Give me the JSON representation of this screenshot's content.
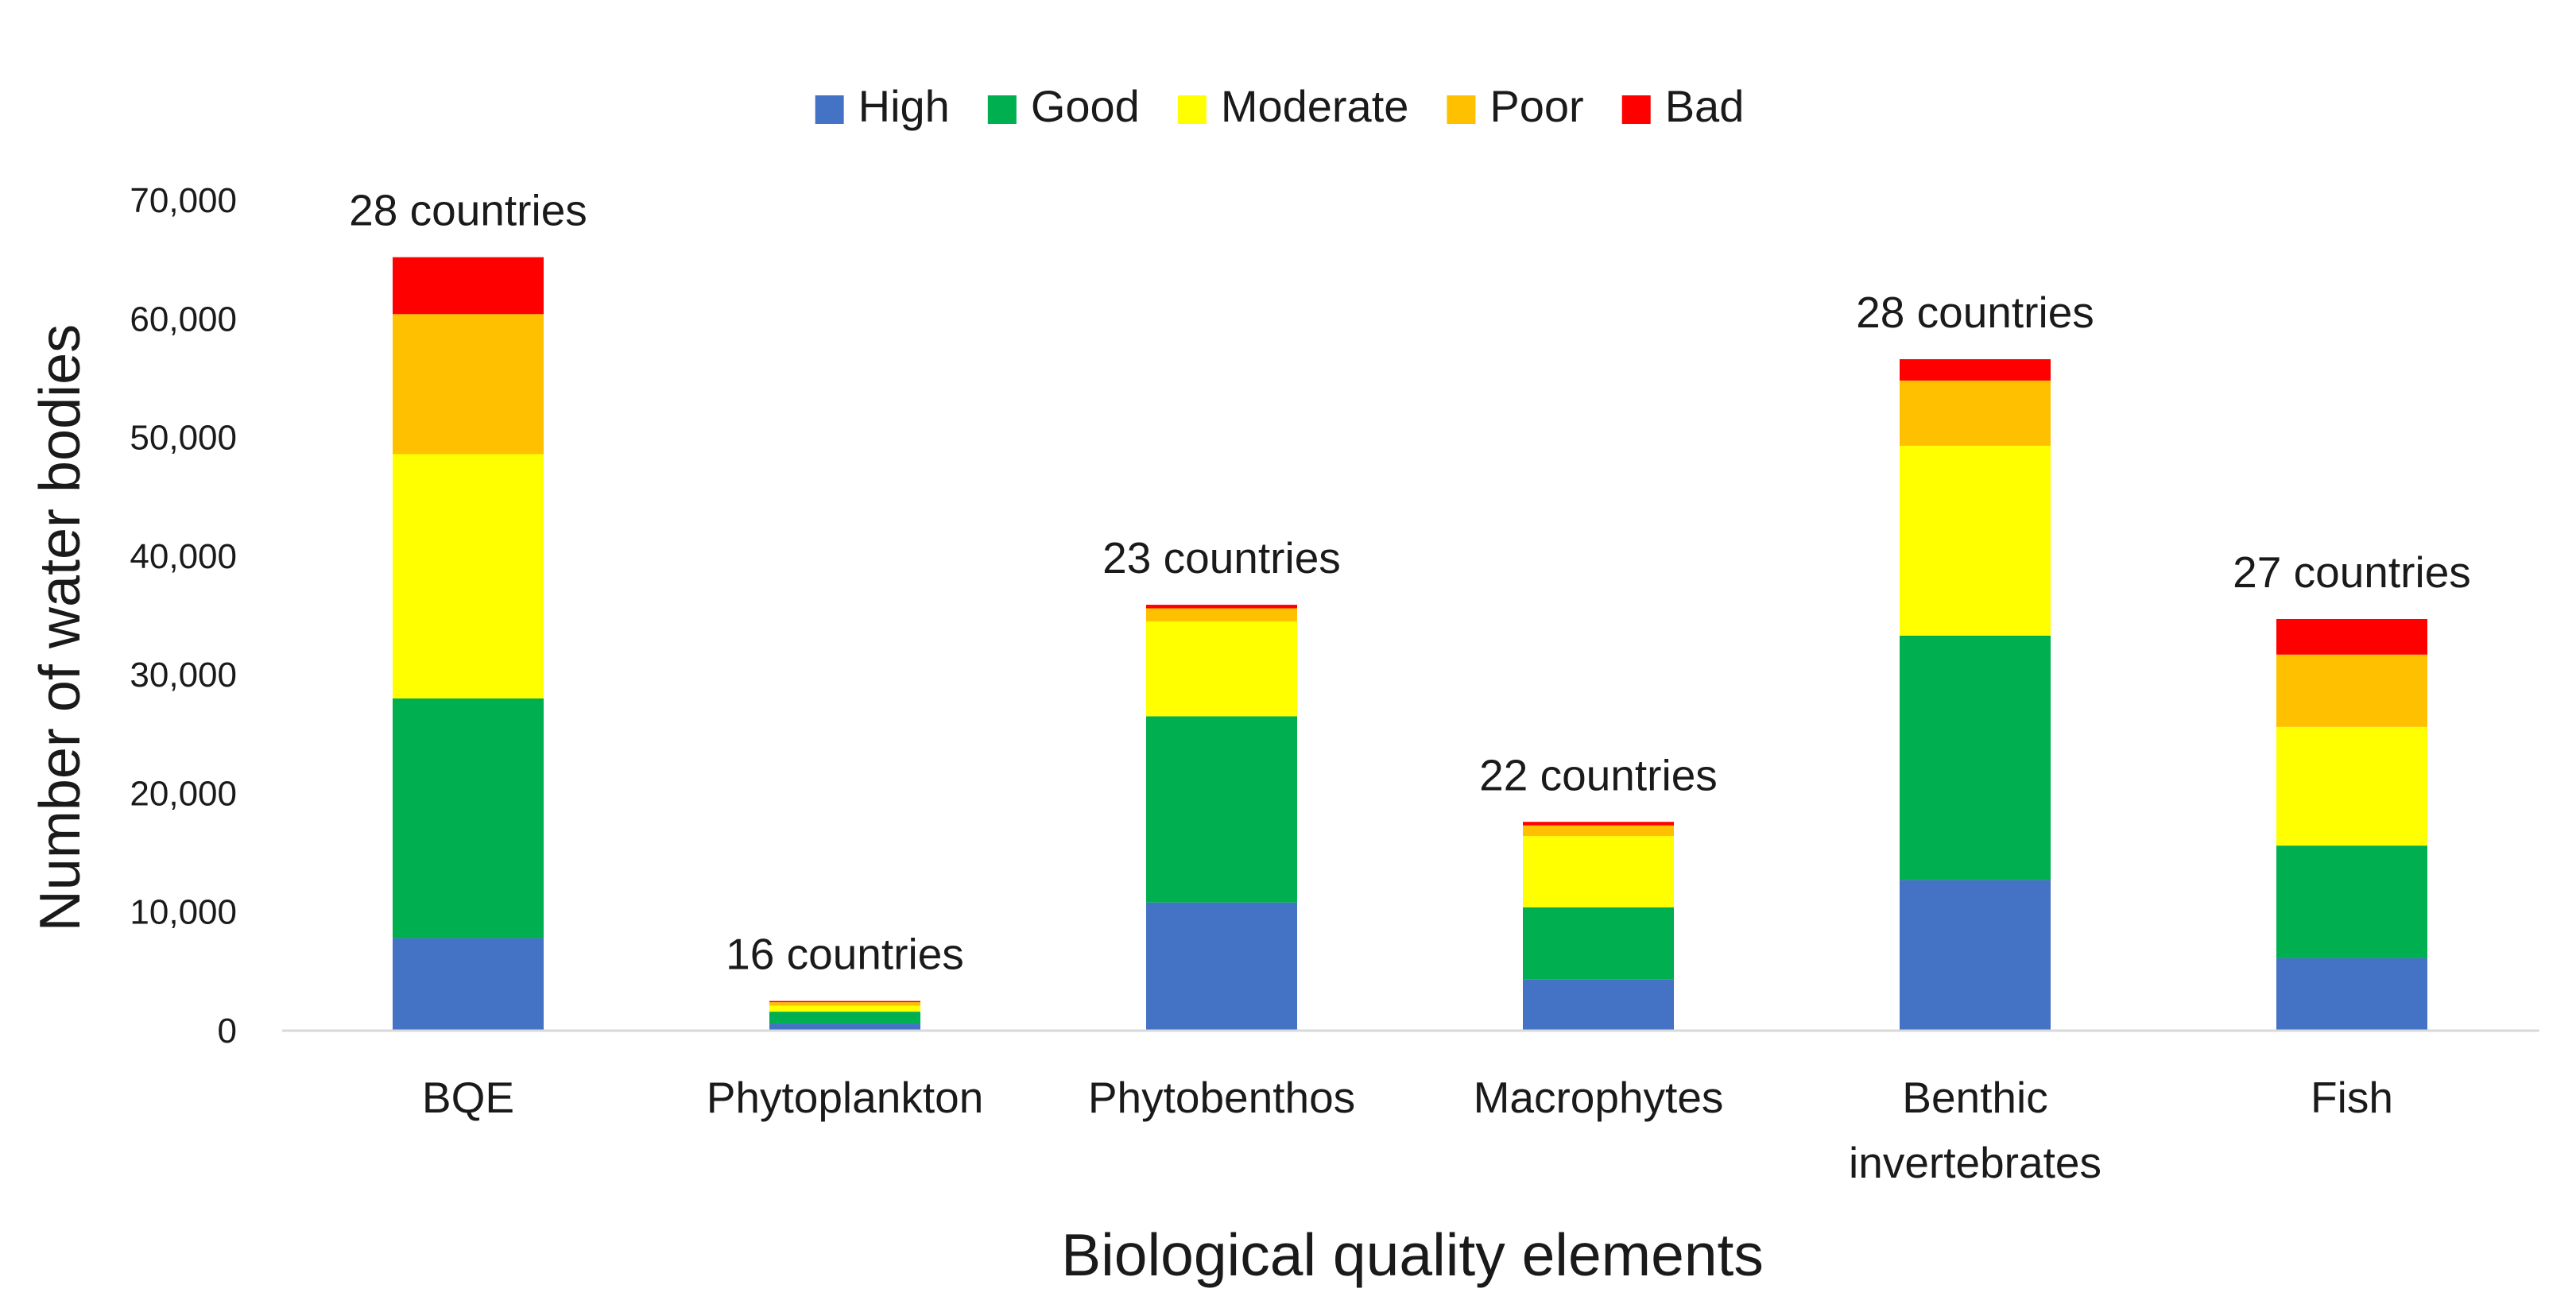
{
  "chart_data": {
    "type": "stacked-bar",
    "title": "",
    "xlabel": "Biological quality elements",
    "ylabel": "Number of water bodies",
    "ylim": [
      0,
      70000
    ],
    "yticks": [
      0,
      10000,
      20000,
      30000,
      40000,
      50000,
      60000,
      70000
    ],
    "ytick_labels": [
      "0",
      "10,000",
      "20,000",
      "30,000",
      "40,000",
      "50,000",
      "60,000",
      "70,000"
    ],
    "categories": [
      [
        "BQE"
      ],
      [
        "Phytoplankton"
      ],
      [
        "Phytobenthos"
      ],
      [
        "Macrophytes"
      ],
      [
        "Benthic",
        "invertebrates"
      ],
      [
        "Fish"
      ]
    ],
    "country_labels": [
      "28 countries",
      "16 countries",
      "23 countries",
      "22 countries",
      "28 countries",
      "27 countries"
    ],
    "legend_position": "top-center",
    "grid": false,
    "series": [
      {
        "name": "High",
        "color": "#4472c4",
        "values": [
          7800,
          600,
          10800,
          4300,
          12700,
          6100
        ]
      },
      {
        "name": "Good",
        "color": "#00b050",
        "values": [
          20200,
          1000,
          15700,
          6100,
          20600,
          9500
        ]
      },
      {
        "name": "Moderate",
        "color": "#ffff00",
        "values": [
          20600,
          500,
          8000,
          6000,
          16000,
          10000
        ]
      },
      {
        "name": "Poor",
        "color": "#ffc000",
        "values": [
          11800,
          300,
          1100,
          900,
          5500,
          6100
        ]
      },
      {
        "name": "Bad",
        "color": "#ff0000",
        "values": [
          4800,
          100,
          300,
          300,
          1800,
          3000
        ]
      }
    ]
  }
}
